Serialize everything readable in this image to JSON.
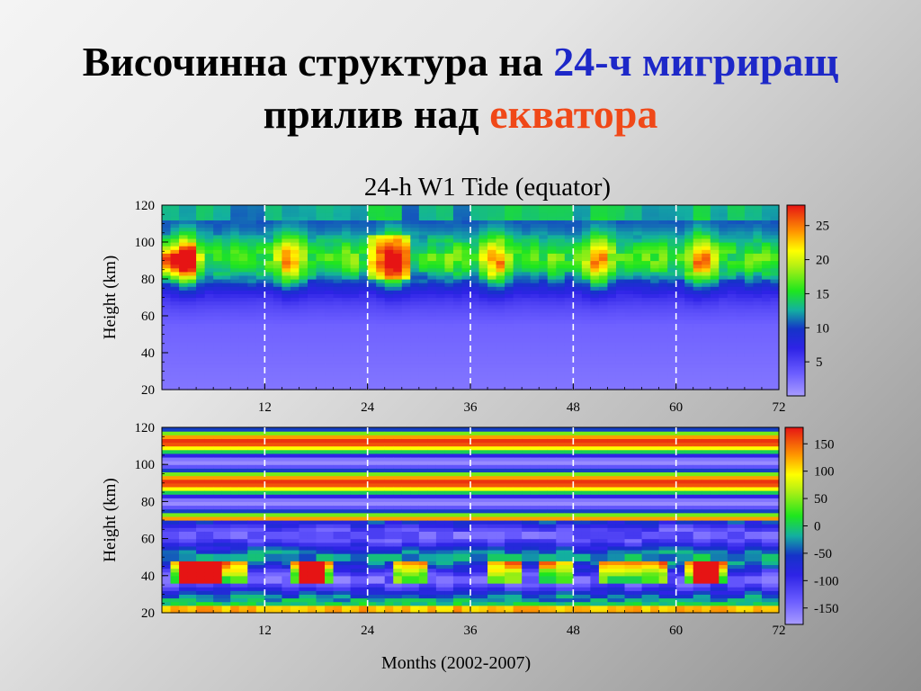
{
  "slide": {
    "title_part1": "Височинна структура на ",
    "title_highlight1": "24-ч мигриращ",
    "title_part2": "прилив над ",
    "title_highlight2": "екватора"
  },
  "colors": {
    "highlight_blue": "#1d28c8",
    "highlight_red": "#f04818"
  },
  "chart_data": [
    {
      "type": "heatmap",
      "title": "24-h W1 Tide  (equator)",
      "xlabel": "",
      "ylabel": "Height  (km)",
      "xlim": [
        0,
        72
      ],
      "ylim": [
        20,
        120
      ],
      "xticks": [
        12,
        24,
        36,
        48,
        60,
        72
      ],
      "yticks": [
        20,
        40,
        60,
        80,
        100,
        120
      ],
      "colorbar": {
        "min": 0,
        "max": 28,
        "ticks": [
          5,
          10,
          15,
          20,
          25
        ]
      },
      "dashed_lines_x": [
        12,
        24,
        36,
        48,
        60
      ],
      "description_values": "amplitude near 1-5 below 55 km; 8-12 from 75-110 km with maxima ~22-25 near month 2-3 and 26 at 85-95 km"
    },
    {
      "type": "heatmap",
      "title": "",
      "xlabel": "Months  (2002-2007)",
      "ylabel": "Height  (km)",
      "xlim": [
        0,
        72
      ],
      "ylim": [
        20,
        120
      ],
      "xticks": [
        12,
        24,
        36,
        48,
        60,
        72
      ],
      "yticks": [
        20,
        40,
        60,
        80,
        100,
        120
      ],
      "colorbar": {
        "min": -180,
        "max": 180,
        "ticks": [
          150,
          100,
          50,
          0,
          -50,
          -100,
          -150
        ]
      },
      "dashed_lines_x": [
        12,
        24,
        36,
        48,
        60
      ]
    }
  ]
}
